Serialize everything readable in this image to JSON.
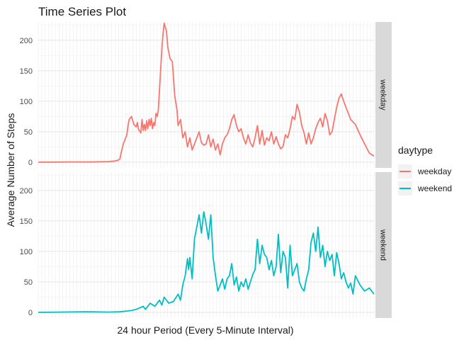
{
  "chart_data": {
    "type": "line",
    "title": "Time Series Plot",
    "xlabel": "24 hour Period (Every 5-Minute Interval)",
    "ylabel": "Average Number of Steps",
    "ylim": [
      0,
      230
    ],
    "yticks": [
      0,
      50,
      100,
      150,
      200
    ],
    "xlim": [
      0,
      288
    ],
    "facets": [
      "weekday",
      "weekend"
    ],
    "grid": true,
    "legend": {
      "title": "daytype",
      "position": "right"
    },
    "series": [
      {
        "name": "weekday",
        "color": "#F8766D",
        "x": [
          0,
          15,
          30,
          45,
          60,
          66,
          68,
          70,
          71,
          73,
          74,
          76,
          77,
          78,
          80,
          82,
          84,
          85,
          86,
          88,
          89,
          90,
          91,
          92,
          93,
          94,
          95,
          96,
          97,
          98,
          99,
          100,
          101,
          102,
          103,
          104,
          106,
          107,
          108,
          110,
          111,
          113,
          115,
          117,
          119,
          120,
          122,
          124,
          126,
          128,
          130,
          132,
          135,
          138,
          140,
          142,
          144,
          146,
          148,
          150,
          152,
          154,
          156,
          158,
          160,
          162,
          164,
          166,
          168,
          170,
          172,
          174,
          176,
          178,
          180,
          182,
          184,
          186,
          188,
          190,
          192,
          194,
          196,
          198,
          200,
          202,
          204,
          206,
          208,
          210,
          212,
          214,
          216,
          218,
          220,
          222,
          224,
          226,
          228,
          230,
          232,
          234,
          236,
          238,
          240,
          242,
          244,
          246,
          248,
          250,
          252,
          254,
          256,
          258,
          260,
          262,
          265,
          268,
          272,
          276,
          280,
          284,
          288
        ],
        "values": [
          0,
          0.2,
          0.5,
          0.3,
          1,
          2,
          3,
          5,
          15,
          30,
          35,
          45,
          60,
          70,
          75,
          62,
          58,
          65,
          54,
          48,
          70,
          52,
          62,
          52,
          68,
          55,
          70,
          60,
          72,
          55,
          65,
          60,
          80,
          75,
          85,
          120,
          185,
          210,
          228,
          215,
          190,
          170,
          165,
          110,
          85,
          60,
          70,
          40,
          50,
          25,
          40,
          20,
          35,
          50,
          32,
          28,
          30,
          45,
          25,
          38,
          20,
          30,
          12,
          30,
          40,
          45,
          55,
          70,
          78,
          60,
          50,
          55,
          40,
          30,
          45,
          32,
          25,
          40,
          60,
          30,
          52,
          28,
          40,
          35,
          50,
          30,
          42,
          30,
          22,
          26,
          45,
          40,
          55,
          75,
          70,
          95,
          82,
          60,
          48,
          30,
          48,
          30,
          40,
          55,
          65,
          72,
          58,
          80,
          68,
          45,
          50,
          70,
          90,
          105,
          112,
          100,
          85,
          70,
          62,
          45,
          30,
          15,
          10
        ],
        "values_tail_note": null
      },
      {
        "name": "weekend",
        "color": "#00BFC4",
        "x": [
          0,
          20,
          40,
          60,
          70,
          80,
          84,
          88,
          90,
          92,
          96,
          100,
          104,
          106,
          108,
          112,
          116,
          120,
          122,
          124,
          126,
          128,
          129,
          130,
          132,
          134,
          136,
          138,
          140,
          142,
          144,
          146,
          148,
          150,
          152,
          154,
          156,
          158,
          160,
          162,
          164,
          166,
          168,
          170,
          172,
          174,
          176,
          178,
          180,
          182,
          184,
          186,
          188,
          190,
          192,
          194,
          196,
          198,
          200,
          202,
          204,
          206,
          208,
          210,
          212,
          214,
          216,
          218,
          220,
          222,
          224,
          226,
          228,
          230,
          232,
          234,
          236,
          238,
          240,
          242,
          244,
          246,
          248,
          250,
          252,
          254,
          256,
          258,
          260,
          262,
          264,
          266,
          268,
          270,
          272,
          276,
          280,
          284,
          288
        ],
        "values": [
          0,
          0.5,
          1,
          0.5,
          1,
          3,
          5,
          8,
          10,
          5,
          15,
          10,
          20,
          12,
          25,
          15,
          18,
          30,
          20,
          45,
          60,
          88,
          70,
          90,
          55,
          120,
          140,
          160,
          130,
          165,
          145,
          120,
          160,
          90,
          60,
          35,
          45,
          55,
          38,
          55,
          60,
          80,
          45,
          58,
          35,
          50,
          42,
          55,
          38,
          50,
          62,
          70,
          120,
          80,
          110,
          95,
          90,
          70,
          85,
          60,
          75,
          128,
          65,
          100,
          90,
          40,
          110,
          60,
          70,
          80,
          50,
          40,
          35,
          55,
          70,
          115,
          130,
          100,
          140,
          90,
          110,
          75,
          100,
          85,
          95,
          60,
          98,
          80,
          55,
          65,
          50,
          40,
          48,
          30,
          60,
          45,
          35,
          40,
          30
        ],
        "values_tail_note": null
      }
    ]
  }
}
